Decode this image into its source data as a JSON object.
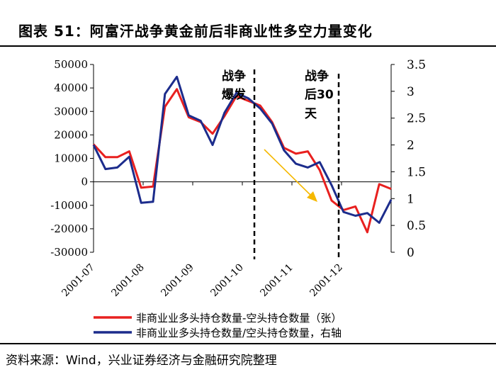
{
  "figure": {
    "title": "图表 51：阿富汗战争黄金前后非商业性多空力量变化",
    "source": "资料来源：Wind，兴业证券经济与金融研究院整理"
  },
  "chart_data": {
    "type": "line",
    "x_ticks": [
      "2001-07",
      "2001-08",
      "2001-09",
      "2001-10",
      "2001-11",
      "2001-12"
    ],
    "y_left": {
      "ticks": [
        50000,
        40000,
        30000,
        20000,
        10000,
        0,
        -10000,
        -20000,
        -30000
      ],
      "ylim": [
        -30000,
        50000
      ]
    },
    "y_right": {
      "ticks": [
        "3.5",
        "3",
        "2.5",
        "2",
        "1.5",
        "1",
        "0.5",
        "0"
      ],
      "ylim": [
        0,
        3.5
      ]
    },
    "series": [
      {
        "name": "非商业业多头持仓数量-空头持仓数量（张）",
        "axis": "left",
        "color": "#e8201f",
        "values": [
          16000,
          10500,
          10500,
          13000,
          -2500,
          -2000,
          32000,
          39500,
          27500,
          25500,
          20500,
          28000,
          36500,
          34500,
          32500,
          25500,
          14500,
          12000,
          13000,
          5000,
          -8000,
          -12000,
          -10500,
          -21500,
          -1000,
          -3000
        ]
      },
      {
        "name": "非商业业多头持仓数量/空头持仓数量，右轴",
        "axis": "right",
        "color": "#1c2c8c",
        "values": [
          2.0,
          1.55,
          1.58,
          1.78,
          0.92,
          0.94,
          2.95,
          3.27,
          2.55,
          2.45,
          2.0,
          2.6,
          2.97,
          2.87,
          2.68,
          2.4,
          1.9,
          1.65,
          1.58,
          1.68,
          1.25,
          0.75,
          0.68,
          0.73,
          0.55,
          0.98
        ]
      }
    ],
    "annotations": [
      {
        "lines": [
          "战争",
          "爆发"
        ]
      },
      {
        "lines": [
          "战争",
          "后30",
          "天"
        ]
      }
    ],
    "arrow_color": "#f5b800",
    "legend_position": "bottom"
  }
}
